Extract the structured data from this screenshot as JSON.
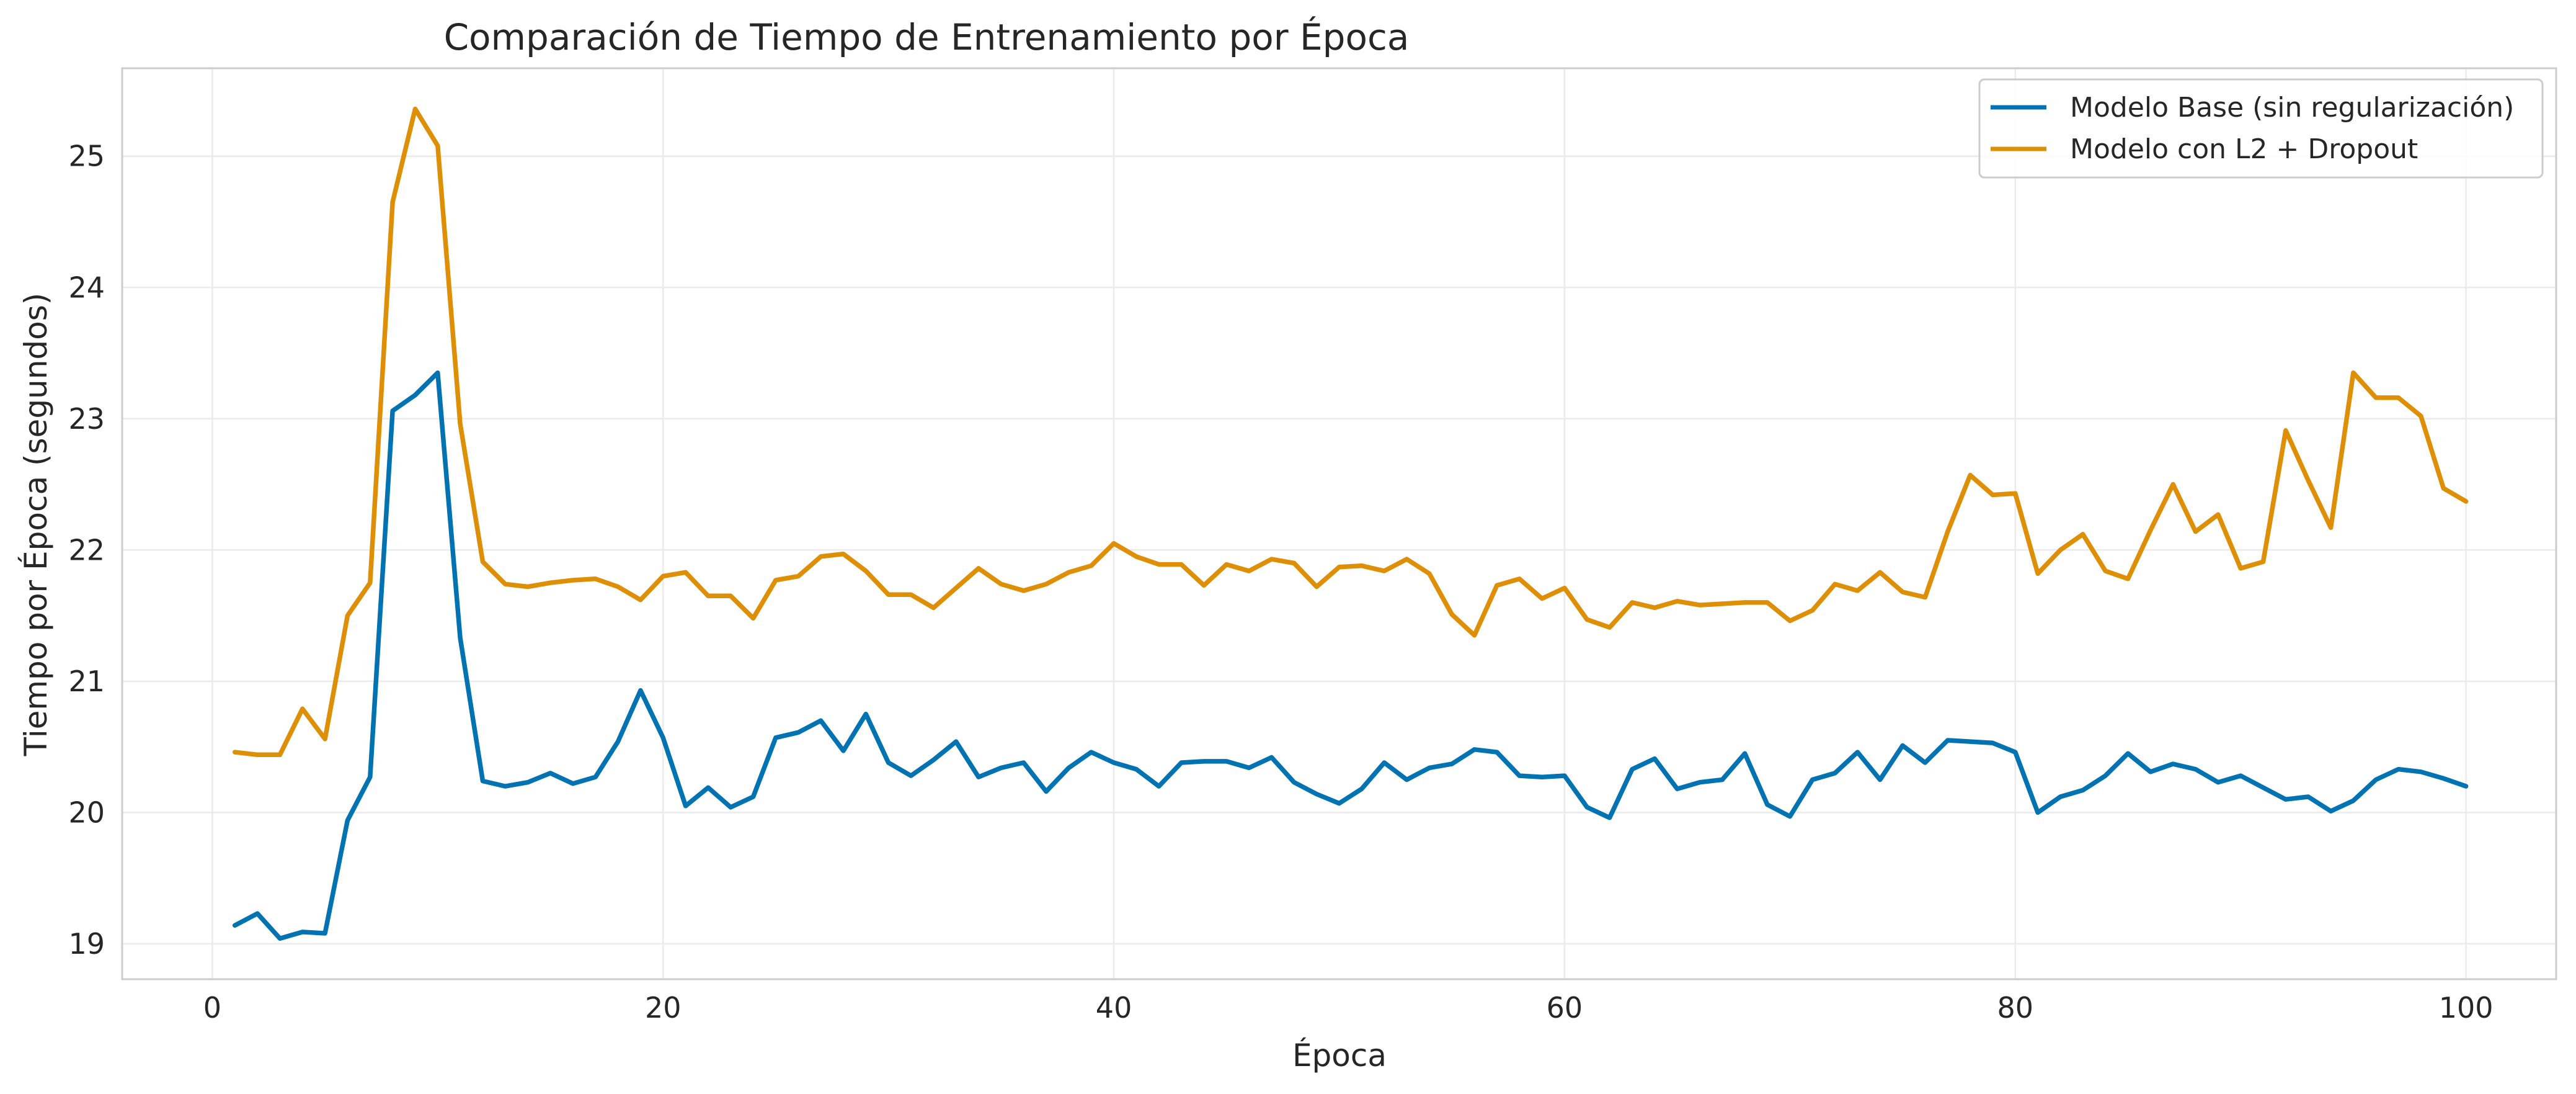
{
  "chart_data": {
    "type": "line",
    "title": "Comparación de Tiempo de Entrenamiento por Época",
    "xlabel": "Época",
    "ylabel": "Tiempo por Época (segundos)",
    "xlim": [
      -4,
      104
    ],
    "ylim": [
      18.73,
      25.67
    ],
    "xticks": [
      0,
      20,
      40,
      60,
      80,
      100
    ],
    "xtick_labels": [
      "0",
      "20",
      "40",
      "60",
      "80",
      "100"
    ],
    "yticks": [
      19,
      20,
      21,
      22,
      23,
      24,
      25
    ],
    "ytick_labels": [
      "19",
      "20",
      "21",
      "22",
      "23",
      "24",
      "25"
    ],
    "grid": true,
    "legend_position": "top-right",
    "x": [
      1,
      2,
      3,
      4,
      5,
      6,
      7,
      8,
      9,
      10,
      11,
      12,
      13,
      14,
      15,
      16,
      17,
      18,
      19,
      20,
      21,
      22,
      23,
      24,
      25,
      26,
      27,
      28,
      29,
      30,
      31,
      32,
      33,
      34,
      35,
      36,
      37,
      38,
      39,
      40,
      41,
      42,
      43,
      44,
      45,
      46,
      47,
      48,
      49,
      50,
      51,
      52,
      53,
      54,
      55,
      56,
      57,
      58,
      59,
      60,
      61,
      62,
      63,
      64,
      65,
      66,
      67,
      68,
      69,
      70,
      71,
      72,
      73,
      74,
      75,
      76,
      77,
      78,
      79,
      80,
      81,
      82,
      83,
      84,
      85,
      86,
      87,
      88,
      89,
      90,
      91,
      92,
      93,
      94,
      95,
      96,
      97,
      98,
      99,
      100
    ],
    "series": [
      {
        "name": "Modelo Base (sin regularización)",
        "color": "#0173b2",
        "values": [
          19.14,
          19.23,
          19.04,
          19.09,
          19.08,
          19.94,
          20.27,
          23.06,
          23.18,
          23.35,
          21.33,
          20.24,
          20.2,
          20.23,
          20.3,
          20.22,
          20.27,
          20.54,
          20.93,
          20.57,
          20.05,
          20.19,
          20.04,
          20.12,
          20.57,
          20.61,
          20.7,
          20.47,
          20.75,
          20.38,
          20.28,
          20.4,
          20.54,
          20.27,
          20.34,
          20.38,
          20.16,
          20.34,
          20.46,
          20.38,
          20.33,
          20.2,
          20.38,
          20.39,
          20.39,
          20.34,
          20.42,
          20.23,
          20.14,
          20.07,
          20.18,
          20.38,
          20.25,
          20.34,
          20.37,
          20.48,
          20.46,
          20.28,
          20.27,
          20.28,
          20.04,
          19.96,
          20.33,
          20.41,
          20.18,
          20.23,
          20.25,
          20.45,
          20.06,
          19.97,
          20.25,
          20.3,
          20.46,
          20.25,
          20.51,
          20.38,
          20.55,
          20.54,
          20.53,
          20.46,
          20.0,
          20.12,
          20.17,
          20.28,
          20.45,
          20.31,
          20.37,
          20.33,
          20.23,
          20.28,
          20.19,
          20.1,
          20.12,
          20.01,
          20.09,
          20.25,
          20.33,
          20.31,
          20.26,
          20.2
        ]
      },
      {
        "name": "Modelo con L2 + Dropout",
        "color": "#de8f05",
        "values": [
          20.46,
          20.44,
          20.44,
          20.79,
          20.56,
          21.5,
          21.75,
          24.65,
          25.36,
          25.08,
          22.96,
          21.91,
          21.74,
          21.72,
          21.75,
          21.77,
          21.78,
          21.72,
          21.62,
          21.8,
          21.83,
          21.65,
          21.65,
          21.48,
          21.77,
          21.8,
          21.95,
          21.97,
          21.84,
          21.66,
          21.66,
          21.56,
          21.71,
          21.86,
          21.74,
          21.69,
          21.74,
          21.83,
          21.88,
          22.05,
          21.95,
          21.89,
          21.89,
          21.73,
          21.89,
          21.84,
          21.93,
          21.9,
          21.72,
          21.87,
          21.88,
          21.84,
          21.93,
          21.82,
          21.51,
          21.35,
          21.73,
          21.78,
          21.63,
          21.71,
          21.47,
          21.41,
          21.6,
          21.56,
          21.61,
          21.58,
          21.59,
          21.6,
          21.6,
          21.46,
          21.54,
          21.74,
          21.69,
          21.83,
          21.68,
          21.64,
          22.14,
          22.57,
          22.42,
          22.43,
          21.82,
          22.0,
          22.12,
          21.84,
          21.78,
          22.15,
          22.5,
          22.14,
          22.27,
          21.86,
          21.91,
          22.91,
          22.53,
          22.17,
          23.35,
          23.16,
          23.16,
          23.02,
          22.47,
          22.37
        ]
      }
    ]
  }
}
